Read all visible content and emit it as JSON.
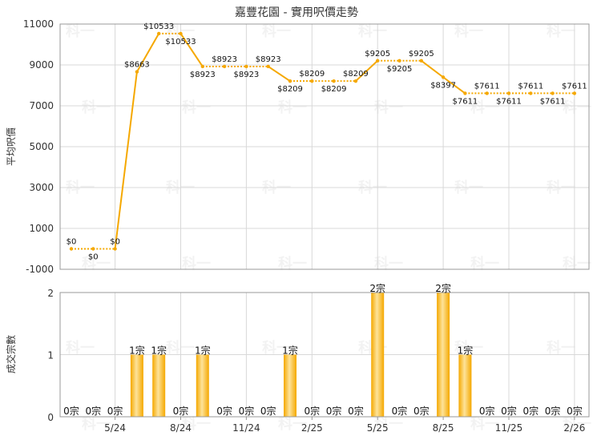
{
  "title": "嘉豐花園 - 實用呎價走勢",
  "watermark": "科一",
  "colors": {
    "accent": "#f5a800",
    "bar_light": "#fde39a",
    "grid": "#d8d8d8",
    "frame": "#999999",
    "text": "#333333"
  },
  "chart_data": [
    {
      "type": "line",
      "ylabel": "平均呎價",
      "ylim": [
        -1000,
        11000
      ],
      "yticks": [
        -1000,
        1000,
        3000,
        5000,
        7000,
        9000,
        11000
      ],
      "x_ticks": [
        "5/24",
        "8/24",
        "11/24",
        "2/25",
        "5/25",
        "8/25",
        "11/25",
        "2/26"
      ],
      "grid": true,
      "series": [
        {
          "values": [
            0,
            0,
            0,
            8663,
            10533,
            10533,
            8923,
            8923,
            8923,
            8923,
            8209,
            8209,
            8209,
            8209,
            9205,
            9205,
            9205,
            8397,
            7611,
            7611,
            7611,
            7611,
            7611,
            7611
          ],
          "labels": [
            "$0",
            "$0",
            "$0",
            "$8663",
            "$10533",
            "$10533",
            "$8923",
            "$8923",
            "$8923",
            "$8923",
            "$8209",
            "$8209",
            "$8209",
            "$8209",
            "$9205",
            "$9205",
            "$9205",
            "$8397",
            "$7611",
            "$7611",
            "$7611",
            "$7611",
            "$7611",
            "$7611"
          ]
        }
      ]
    },
    {
      "type": "bar",
      "ylabel": "成交宗數",
      "ylim": [
        0,
        2
      ],
      "yticks": [
        0,
        1,
        2
      ],
      "x_ticks": [
        "5/24",
        "8/24",
        "11/24",
        "2/25",
        "5/25",
        "8/25",
        "11/25",
        "2/26"
      ],
      "grid": true,
      "values": [
        0,
        0,
        0,
        1,
        1,
        0,
        1,
        0,
        0,
        0,
        1,
        0,
        0,
        0,
        2,
        0,
        0,
        2,
        1,
        0,
        0,
        0,
        0,
        0
      ],
      "labels": [
        "0宗",
        "0宗",
        "0宗",
        "1宗",
        "1宗",
        "0宗",
        "1宗",
        "0宗",
        "0宗",
        "0宗",
        "1宗",
        "0宗",
        "0宗",
        "0宗",
        "2宗",
        "0宗",
        "0宗",
        "2宗",
        "1宗",
        "0宗",
        "0宗",
        "0宗",
        "0宗",
        "0宗"
      ]
    }
  ]
}
